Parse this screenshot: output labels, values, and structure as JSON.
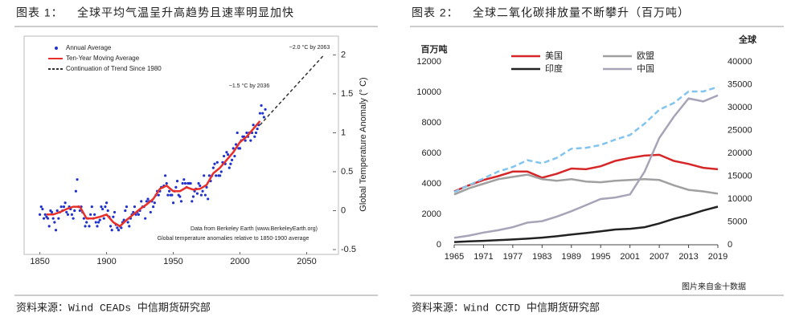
{
  "chart_data": [
    {
      "type": "scatter",
      "figure_label": "图表 1：",
      "title": "全球平均气温呈升高趋势且速率明显加快",
      "source": "资料来源：Wind CEADs 中信期货研究部",
      "y_label": "Global Temperature Anomaly (° C)",
      "annotations": [
        "~2.0 °C by 2063",
        "~1.5 °C by 2036",
        "Data from Berkeley Earth (www.BerkeleyEarth.org)",
        "Global temperature anomalies relative to 1850-1900 average"
      ],
      "xlim": [
        1840,
        2072
      ],
      "xticks": [
        1850,
        1900,
        1950,
        2000,
        2050
      ],
      "ylim": [
        -0.5,
        2.2
      ],
      "yticks": [
        -0.5,
        0,
        0.5,
        1,
        1.5,
        2
      ],
      "series": [
        {
          "name": "Annual Average",
          "color": "#2233cc",
          "mark": "points",
          "x": [
            1850,
            1851,
            1852,
            1853,
            1854,
            1855,
            1856,
            1857,
            1858,
            1859,
            1860,
            1861,
            1862,
            1863,
            1864,
            1865,
            1866,
            1867,
            1868,
            1869,
            1870,
            1871,
            1872,
            1873,
            1874,
            1875,
            1876,
            1877,
            1878,
            1879,
            1880,
            1881,
            1882,
            1883,
            1884,
            1885,
            1886,
            1887,
            1888,
            1889,
            1890,
            1891,
            1892,
            1893,
            1894,
            1895,
            1896,
            1897,
            1898,
            1899,
            1900,
            1901,
            1902,
            1903,
            1904,
            1905,
            1906,
            1907,
            1908,
            1909,
            1910,
            1911,
            1912,
            1913,
            1914,
            1915,
            1916,
            1917,
            1918,
            1919,
            1920,
            1921,
            1922,
            1923,
            1924,
            1925,
            1926,
            1927,
            1928,
            1929,
            1930,
            1931,
            1932,
            1933,
            1934,
            1935,
            1936,
            1937,
            1938,
            1939,
            1940,
            1941,
            1942,
            1943,
            1944,
            1945,
            1946,
            1947,
            1948,
            1949,
            1950,
            1951,
            1952,
            1953,
            1954,
            1955,
            1956,
            1957,
            1958,
            1959,
            1960,
            1961,
            1962,
            1963,
            1964,
            1965,
            1966,
            1967,
            1968,
            1969,
            1970,
            1971,
            1972,
            1973,
            1974,
            1975,
            1976,
            1977,
            1978,
            1979,
            1980,
            1981,
            1982,
            1983,
            1984,
            1985,
            1986,
            1987,
            1988,
            1989,
            1990,
            1991,
            1992,
            1993,
            1994,
            1995,
            1996,
            1997,
            1998,
            1999,
            2000,
            2001,
            2002,
            2003,
            2004,
            2005,
            2006,
            2007,
            2008,
            2009,
            2010,
            2011,
            2012,
            2013,
            2014,
            2015,
            2016,
            2017,
            2018,
            2019
          ],
          "values": [
            -0.05,
            0.05,
            0.02,
            -0.1,
            -0.05,
            -0.08,
            -0.1,
            -0.2,
            0.0,
            -0.02,
            -0.1,
            -0.15,
            -0.25,
            0.0,
            -0.1,
            -0.02,
            0.05,
            0.0,
            0.05,
            0.1,
            -0.02,
            -0.05,
            0.05,
            0.02,
            -0.05,
            -0.1,
            0.0,
            0.25,
            0.4,
            0.05,
            0.0,
            0.05,
            -0.02,
            -0.1,
            -0.2,
            -0.15,
            -0.1,
            -0.2,
            -0.05,
            0.05,
            -0.1,
            -0.05,
            -0.15,
            -0.2,
            -0.15,
            -0.12,
            0.05,
            0.02,
            -0.1,
            0.05,
            0.1,
            0.0,
            -0.08,
            -0.2,
            -0.25,
            -0.08,
            -0.02,
            -0.18,
            -0.22,
            -0.25,
            -0.2,
            -0.22,
            -0.15,
            -0.12,
            0.0,
            0.05,
            -0.15,
            -0.2,
            -0.1,
            -0.05,
            -0.02,
            0.05,
            -0.05,
            -0.02,
            -0.05,
            0.0,
            0.12,
            0.05,
            0.05,
            -0.1,
            0.12,
            0.15,
            0.12,
            -0.02,
            0.12,
            0.05,
            0.1,
            0.2,
            0.25,
            0.2,
            0.25,
            0.3,
            0.3,
            0.32,
            0.45,
            0.35,
            0.2,
            0.25,
            0.2,
            0.2,
            0.1,
            0.25,
            0.3,
            0.38,
            0.2,
            0.18,
            0.12,
            0.35,
            0.4,
            0.35,
            0.3,
            0.35,
            0.35,
            0.35,
            0.12,
            0.18,
            0.25,
            0.28,
            0.22,
            0.35,
            0.32,
            0.2,
            0.25,
            0.45,
            0.2,
            0.3,
            0.15,
            0.45,
            0.38,
            0.45,
            0.55,
            0.6,
            0.45,
            0.62,
            0.45,
            0.45,
            0.5,
            0.62,
            0.7,
            0.6,
            0.75,
            0.72,
            0.55,
            0.6,
            0.65,
            0.8,
            0.7,
            0.85,
            1.0,
            0.8,
            0.8,
            0.9,
            0.95,
            0.95,
            0.9,
            1.0,
            0.95,
            1.0,
            0.9,
            1.0,
            1.1,
            0.95,
            1.0,
            1.05,
            1.1,
            1.25,
            1.35,
            1.25,
            1.2,
            1.3
          ]
        },
        {
          "name": "Ten-Year Moving Average",
          "color": "#e8302a",
          "mark": "line",
          "x": [
            1855,
            1860,
            1865,
            1870,
            1875,
            1880,
            1885,
            1890,
            1895,
            1900,
            1905,
            1910,
            1915,
            1920,
            1925,
            1930,
            1935,
            1940,
            1945,
            1950,
            1955,
            1960,
            1965,
            1970,
            1975,
            1980,
            1985,
            1990,
            1995,
            2000,
            2005,
            2010,
            2015
          ],
          "values": [
            -0.05,
            -0.05,
            -0.02,
            0.02,
            0.05,
            0.05,
            -0.1,
            -0.1,
            -0.08,
            -0.05,
            -0.15,
            -0.2,
            -0.12,
            -0.05,
            0.02,
            0.08,
            0.15,
            0.28,
            0.32,
            0.25,
            0.25,
            0.3,
            0.27,
            0.28,
            0.33,
            0.48,
            0.55,
            0.65,
            0.75,
            0.88,
            0.95,
            1.05,
            1.15
          ]
        },
        {
          "name": "Continuation of Trend Since 1980",
          "color": "#333333",
          "mark": "dashed",
          "x": [
            2015,
            2063
          ],
          "values": [
            1.1,
            2.0
          ]
        }
      ]
    },
    {
      "type": "line",
      "figure_label": "图表 2：",
      "title": "全球二氧化碳排放量不断攀升（百万吨）",
      "source": "资料来源：Wind CCTD 中信期货研究部",
      "y_label": "百万吨",
      "y2_label": "全球",
      "xlim": [
        1965,
        2019
      ],
      "xticks": [
        1965,
        1971,
        1977,
        1983,
        1989,
        1995,
        2001,
        2007,
        2013,
        2019
      ],
      "ylim": [
        0,
        12000
      ],
      "yticks": [
        0,
        2000,
        4000,
        6000,
        8000,
        10000,
        12000
      ],
      "y2lim": [
        0,
        40000
      ],
      "y2ticks": [
        0,
        5000,
        10000,
        15000,
        20000,
        25000,
        30000,
        35000,
        40000
      ],
      "x": [
        1965,
        1968,
        1971,
        1974,
        1977,
        1980,
        1983,
        1986,
        1989,
        1992,
        1995,
        1998,
        2001,
        2004,
        2007,
        2010,
        2013,
        2016,
        2019
      ],
      "series": [
        {
          "name": "美国",
          "color": "#d62728",
          "values": [
            3500,
            3900,
            4250,
            4500,
            4800,
            4800,
            4400,
            4650,
            5000,
            4950,
            5150,
            5500,
            5700,
            5850,
            5900,
            5500,
            5300,
            5050,
            4950
          ]
        },
        {
          "name": "欧盟",
          "color": "#a0a0a0",
          "values": [
            3300,
            3700,
            4000,
            4300,
            4450,
            4600,
            4300,
            4200,
            4300,
            4150,
            4100,
            4200,
            4250,
            4300,
            4250,
            3900,
            3600,
            3500,
            3350
          ]
        },
        {
          "name": "印度",
          "color": "#222222",
          "values": [
            180,
            220,
            260,
            300,
            350,
            400,
            470,
            560,
            670,
            770,
            880,
            1000,
            1050,
            1150,
            1400,
            1700,
            1950,
            2250,
            2500
          ]
        },
        {
          "name": "中国",
          "color": "#a8a4b8",
          "values": [
            450,
            600,
            800,
            950,
            1150,
            1450,
            1550,
            1850,
            2200,
            2600,
            3000,
            3100,
            3300,
            4800,
            7000,
            8400,
            9600,
            9400,
            9800
          ]
        },
        {
          "color": "#82c4ee",
          "dashed": true,
          "axis": "y2",
          "values": [
            11500,
            13000,
            14500,
            16000,
            17000,
            18500,
            17800,
            19000,
            21000,
            21200,
            21800,
            23000,
            24000,
            26500,
            29500,
            31000,
            33500,
            33500,
            34500
          ]
        }
      ]
    }
  ],
  "watermark": "图片来自金十数据"
}
